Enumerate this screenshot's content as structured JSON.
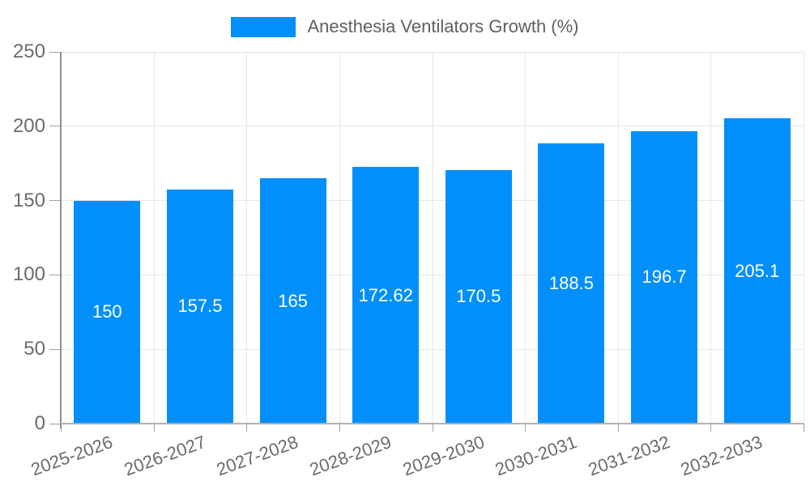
{
  "chart_data": {
    "type": "bar",
    "title": "Anesthesia Ventilators Growth (%)",
    "categories": [
      "2025-2026",
      "2026-2027",
      "2027-2028",
      "2028-2029",
      "2029-2030",
      "2030-2031",
      "2031-2032",
      "2032-2033"
    ],
    "values": [
      150,
      157.5,
      165,
      172.62,
      170.5,
      188.5,
      196.7,
      205.1
    ],
    "value_labels": [
      "150",
      "157.5",
      "165",
      "172.62",
      "170.5",
      "188.5",
      "196.7",
      "205.1"
    ],
    "y_ticks": [
      0,
      50,
      100,
      150,
      200,
      250
    ],
    "y_tick_labels": [
      "0",
      "50",
      "100",
      "150",
      "200",
      "250"
    ],
    "ylim": [
      0,
      250
    ],
    "xlabel": "",
    "ylabel": "",
    "grid": true,
    "legend_position": "top",
    "colors": {
      "bar": "#008FFB",
      "grid_line": "#e7e7e7",
      "x_axis_line": "#b1b1b1",
      "y_axis_line": "#8e8e8e",
      "tick": "#a0a0a0",
      "axis_label": "#6b6b6b",
      "data_label": "#ffffff",
      "legend_text": "#5f5f5f",
      "background": "#ffffff"
    }
  }
}
